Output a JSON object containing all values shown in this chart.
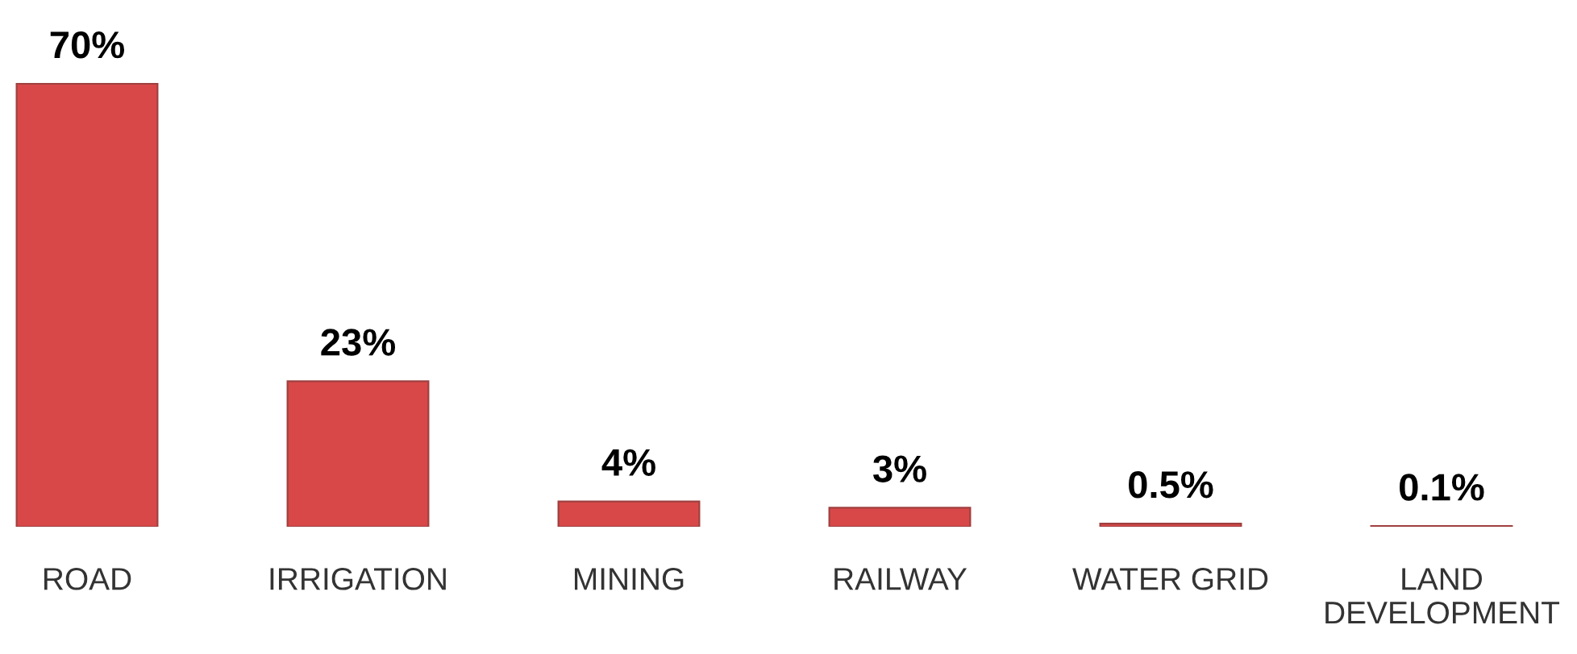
{
  "chart_data": {
    "type": "bar",
    "categories": [
      "ROAD",
      "IRRIGATION",
      "MINING",
      "RAILWAY",
      "WATER GRID",
      "LAND\nDEVELOPMENT"
    ],
    "values": [
      70,
      23,
      4,
      3,
      0.5,
      0.1
    ],
    "value_labels": [
      "70%",
      "23%",
      "4%",
      "3%",
      "0.5%",
      "0.1%"
    ],
    "colors": [
      "#d84848",
      "#d84848",
      "#d84848",
      "#d84848",
      "#d84848",
      "#e3a5ad"
    ],
    "grid": false,
    "tick_labels": "x"
  }
}
